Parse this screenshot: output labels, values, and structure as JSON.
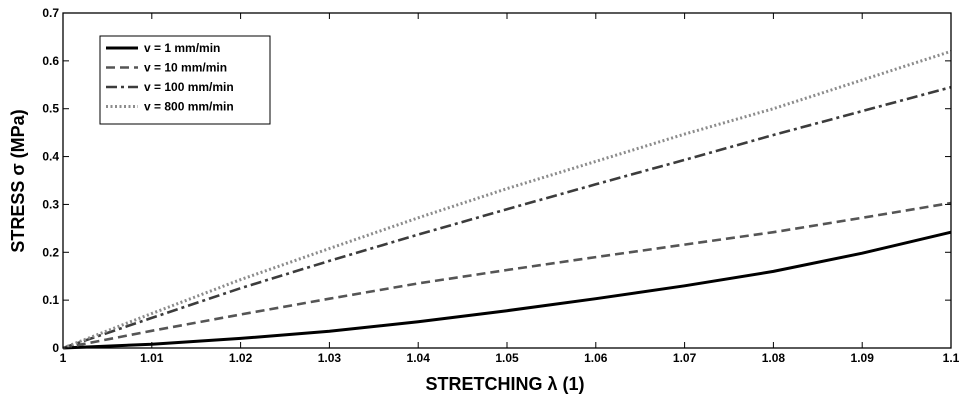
{
  "chart_data": {
    "type": "line",
    "title": "",
    "xlabel": "STRETCHING  λ  (1)",
    "ylabel": "STRESS σ  (MPa)",
    "xlim": [
      1,
      1.1
    ],
    "ylim": [
      0,
      0.7
    ],
    "xticks": [
      1,
      1.01,
      1.02,
      1.03,
      1.04,
      1.05,
      1.06,
      1.07,
      1.08,
      1.09,
      1.1
    ],
    "xtick_labels": [
      "1",
      "1.01",
      "1.02",
      "1.03",
      "1.04",
      "1.05",
      "1.06",
      "1.07",
      "1.08",
      "1.09",
      "1.1"
    ],
    "yticks": [
      0,
      0.1,
      0.2,
      0.3,
      0.4,
      0.5,
      0.6,
      0.7
    ],
    "ytick_labels": [
      "0",
      "0.1",
      "0.2",
      "0.3",
      "0.4",
      "0.5",
      "0.6",
      "0.7"
    ],
    "grid": false,
    "legend_position": "top-left",
    "x": [
      1,
      1.01,
      1.02,
      1.03,
      1.04,
      1.05,
      1.06,
      1.07,
      1.08,
      1.09,
      1.1
    ],
    "series": [
      {
        "name": "v = 1 mm/min",
        "style": "solid",
        "color": "#000000",
        "values": [
          0,
          0.008,
          0.02,
          0.035,
          0.055,
          0.078,
          0.103,
          0.13,
          0.16,
          0.198,
          0.242
        ]
      },
      {
        "name": "v = 10 mm/min",
        "style": "dashed",
        "color": "#555555",
        "values": [
          0,
          0.036,
          0.07,
          0.103,
          0.135,
          0.163,
          0.19,
          0.216,
          0.242,
          0.272,
          0.303
        ]
      },
      {
        "name": "v = 100 mm/min",
        "style": "dashdot",
        "color": "#3c3c3c",
        "values": [
          0,
          0.063,
          0.125,
          0.182,
          0.237,
          0.29,
          0.342,
          0.393,
          0.445,
          0.495,
          0.545
        ]
      },
      {
        "name": "v = 800 mm/min",
        "style": "dotted",
        "color": "#8c8c8c",
        "values": [
          0,
          0.072,
          0.143,
          0.208,
          0.272,
          0.333,
          0.39,
          0.447,
          0.5,
          0.56,
          0.62
        ]
      }
    ]
  }
}
